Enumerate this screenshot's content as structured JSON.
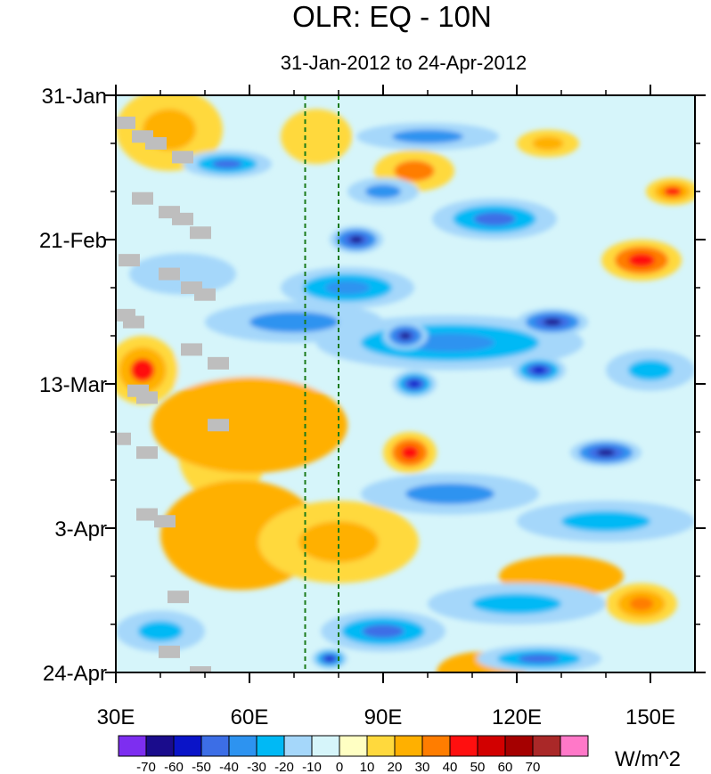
{
  "chart_data": {
    "type": "heatmap",
    "title": "OLR: EQ - 10N",
    "subtitle": "31-Jan-2012 to 24-Apr-2012",
    "xlabel": "",
    "ylabel": "",
    "x_range": [
      30,
      160
    ],
    "x_ticks": [
      {
        "value": 30,
        "label": "30E"
      },
      {
        "value": 60,
        "label": "60E"
      },
      {
        "value": 90,
        "label": "90E"
      },
      {
        "value": 120,
        "label": "120E"
      },
      {
        "value": 150,
        "label": "150E"
      }
    ],
    "y_range_days": [
      0,
      84
    ],
    "y_ticks": [
      {
        "day": 0,
        "label": "31-Jan"
      },
      {
        "day": 21,
        "label": "21-Feb"
      },
      {
        "day": 42,
        "label": "13-Mar"
      },
      {
        "day": 63,
        "label": "3-Apr"
      },
      {
        "day": 84,
        "label": "24-Apr"
      }
    ],
    "reference_lines_lon": [
      72.5,
      80
    ],
    "units": "W/m^2",
    "levels": [
      -70,
      -60,
      -50,
      -40,
      -30,
      -20,
      -10,
      0,
      10,
      20,
      30,
      40,
      50,
      60,
      70
    ],
    "level_labels": [
      "-70",
      "-60",
      "-50",
      "-40",
      "-30",
      "-20",
      "-10",
      "0",
      "10",
      "20",
      "30",
      "40",
      "50",
      "60",
      "70"
    ],
    "colors": [
      "#7d2ef0",
      "#1a0c8c",
      "#0a14c8",
      "#3c6ee6",
      "#2d93f0",
      "#00b9f5",
      "#a5d7fa",
      "#d6f5fa",
      "#ffffc3",
      "#ffd93d",
      "#ffb000",
      "#ff7d00",
      "#ff0f0f",
      "#d20000",
      "#a50000",
      "#aa2828",
      "#ff78c8"
    ],
    "missing_color": "#bebebe",
    "anomaly_features": [
      {
        "lon": 42,
        "day": 5,
        "value": 25,
        "rx": 12,
        "ry": 6
      },
      {
        "lon": 36,
        "day": 40,
        "value": 40,
        "rx": 8,
        "ry": 5
      },
      {
        "lon": 60,
        "day": 48,
        "value": 22,
        "rx": 22,
        "ry": 7
      },
      {
        "lon": 54,
        "day": 52,
        "value": 12,
        "rx": 10,
        "ry": 7
      },
      {
        "lon": 96,
        "day": 52,
        "value": 45,
        "rx": 6,
        "ry": 3
      },
      {
        "lon": 80,
        "day": 65,
        "value": 28,
        "rx": 18,
        "ry": 6
      },
      {
        "lon": 58,
        "day": 64,
        "value": 20,
        "rx": 18,
        "ry": 8
      },
      {
        "lon": 97,
        "day": 11,
        "value": 30,
        "rx": 9,
        "ry": 3
      },
      {
        "lon": 127,
        "day": 7,
        "value": 25,
        "rx": 7,
        "ry": 2
      },
      {
        "lon": 148,
        "day": 24,
        "value": 45,
        "rx": 9,
        "ry": 3
      },
      {
        "lon": 155,
        "day": 14,
        "value": 40,
        "rx": 6,
        "ry": 2
      },
      {
        "lon": 148,
        "day": 74,
        "value": 38,
        "rx": 8,
        "ry": 3
      },
      {
        "lon": 130,
        "day": 70,
        "value": 22,
        "rx": 14,
        "ry": 3
      },
      {
        "lon": 112,
        "day": 84,
        "value": 20,
        "rx": 10,
        "ry": 3
      },
      {
        "lon": 75,
        "day": 6,
        "value": 10,
        "rx": 8,
        "ry": 4
      },
      {
        "lon": 84,
        "day": 21,
        "value": -65,
        "rx": 6,
        "ry": 2
      },
      {
        "lon": 95,
        "day": 35,
        "value": -65,
        "rx": 5,
        "ry": 2
      },
      {
        "lon": 128,
        "day": 33,
        "value": -66,
        "rx": 8,
        "ry": 2
      },
      {
        "lon": 125,
        "day": 40,
        "value": -58,
        "rx": 6,
        "ry": 2
      },
      {
        "lon": 140,
        "day": 52,
        "value": -62,
        "rx": 8,
        "ry": 2
      },
      {
        "lon": 97,
        "day": 42,
        "value": -55,
        "rx": 5,
        "ry": 2
      },
      {
        "lon": 55,
        "day": 10,
        "value": -45,
        "rx": 10,
        "ry": 2
      },
      {
        "lon": 105,
        "day": 36,
        "value": -40,
        "rx": 30,
        "ry": 4
      },
      {
        "lon": 115,
        "day": 18,
        "value": -45,
        "rx": 14,
        "ry": 3
      },
      {
        "lon": 70,
        "day": 33,
        "value": -35,
        "rx": 20,
        "ry": 3
      },
      {
        "lon": 82,
        "day": 28,
        "value": -40,
        "rx": 15,
        "ry": 3
      },
      {
        "lon": 45,
        "day": 26,
        "value": -12,
        "rx": 12,
        "ry": 3
      },
      {
        "lon": 90,
        "day": 14,
        "value": -35,
        "rx": 8,
        "ry": 2
      },
      {
        "lon": 65,
        "day": 40,
        "value": -10,
        "rx": 30,
        "ry": 3
      },
      {
        "lon": 105,
        "day": 58,
        "value": -35,
        "rx": 20,
        "ry": 3
      },
      {
        "lon": 140,
        "day": 62,
        "value": -30,
        "rx": 20,
        "ry": 3
      },
      {
        "lon": 90,
        "day": 78,
        "value": -45,
        "rx": 14,
        "ry": 3
      },
      {
        "lon": 125,
        "day": 82,
        "value": -45,
        "rx": 14,
        "ry": 2
      },
      {
        "lon": 120,
        "day": 74,
        "value": -25,
        "rx": 20,
        "ry": 3
      },
      {
        "lon": 40,
        "day": 78,
        "value": -30,
        "rx": 10,
        "ry": 3
      },
      {
        "lon": 78,
        "day": 82,
        "value": -58,
        "rx": 4,
        "ry": 1.5
      },
      {
        "lon": 100,
        "day": 6,
        "value": -35,
        "rx": 16,
        "ry": 2
      },
      {
        "lon": 150,
        "day": 40,
        "value": -30,
        "rx": 10,
        "ry": 3
      }
    ],
    "missing_cells": [
      {
        "lon": 32,
        "day": 4
      },
      {
        "lon": 36,
        "day": 6
      },
      {
        "lon": 39,
        "day": 7
      },
      {
        "lon": 45,
        "day": 9
      },
      {
        "lon": 36,
        "day": 15
      },
      {
        "lon": 42,
        "day": 17
      },
      {
        "lon": 45,
        "day": 18
      },
      {
        "lon": 49,
        "day": 20
      },
      {
        "lon": 33,
        "day": 24
      },
      {
        "lon": 42,
        "day": 26
      },
      {
        "lon": 47,
        "day": 28
      },
      {
        "lon": 50,
        "day": 29
      },
      {
        "lon": 32,
        "day": 32
      },
      {
        "lon": 34,
        "day": 33
      },
      {
        "lon": 47,
        "day": 37
      },
      {
        "lon": 53,
        "day": 39
      },
      {
        "lon": 35,
        "day": 43
      },
      {
        "lon": 37,
        "day": 44
      },
      {
        "lon": 53,
        "day": 48
      },
      {
        "lon": 31,
        "day": 50
      },
      {
        "lon": 37,
        "day": 52
      },
      {
        "lon": 37,
        "day": 61
      },
      {
        "lon": 41,
        "day": 62
      },
      {
        "lon": 44,
        "day": 73
      },
      {
        "lon": 42,
        "day": 81
      },
      {
        "lon": 49,
        "day": 84
      }
    ]
  },
  "colorbar": {
    "units": "W/m^2"
  }
}
